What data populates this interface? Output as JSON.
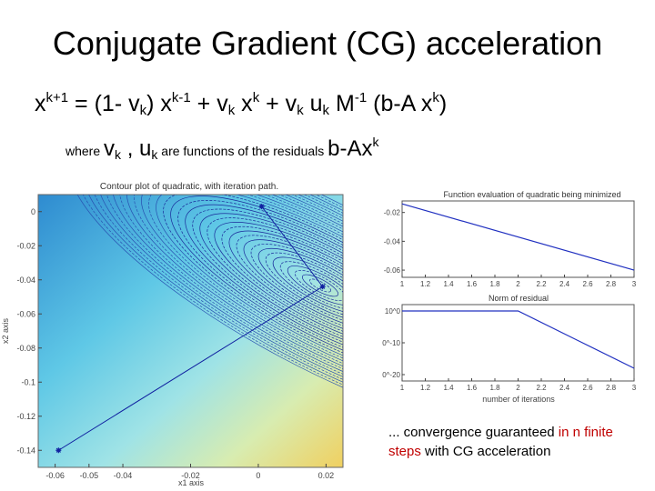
{
  "slide": {
    "title": "Conjugate Gradient (CG) acceleration",
    "equation": {
      "x1": "x",
      "k1": "k+1",
      "eq_open": " = (1- v",
      "k2": "k",
      "close_x": ") x",
      "km1": "k-1",
      "plus_v": " + v",
      "k3": "k",
      "x2": " x",
      "k4": "k",
      "plus_v2": "  + v",
      "k5": "k",
      "u": " u",
      "k6": "k",
      "M": " M",
      "m1": "-1",
      "bAx": " (b-A x",
      "k7": "k",
      "end": ")"
    },
    "where": {
      "word": "where ",
      "v": "v",
      "k_v": "k",
      "comma_u": " , u",
      "k_u": "k",
      "middle": " are functions of the residuals ",
      "bAx": "b-Ax",
      "k_sup": "k"
    },
    "note": {
      "part1": "... convergence guaranteed ",
      "part2_red": "in n finite steps",
      "part3": " with CG  acceleration"
    }
  },
  "chart_data": [
    {
      "type": "line",
      "title": "Contour plot of quadratic, with iteration path.",
      "xlabel": "x1 axis",
      "ylabel": "x2 axis",
      "xticks": [
        "-0.06",
        "-0.05",
        "-0.04",
        "-0.02",
        "0",
        "0.02"
      ],
      "yticks": [
        "0",
        "-0.02",
        "-0.04",
        "-0.06",
        "-0.08",
        "-0.1",
        "-0.12",
        "-0.14"
      ],
      "xlim": [
        -0.065,
        0.025
      ],
      "ylim": [
        -0.15,
        0.01
      ],
      "series": [
        {
          "x": [
            -0.059,
            0.019,
            0.001
          ],
          "y": [
            -0.14,
            -0.044,
            0.003
          ]
        }
      ]
    },
    {
      "type": "line",
      "title": "Function evaluation of quadratic being minimized",
      "xticks": [
        "1",
        "1.2",
        "1.4",
        "1.6",
        "1.8",
        "2",
        "2.2",
        "2.4",
        "2.6",
        "2.8",
        "3"
      ],
      "yticks": [
        "-0.02",
        "-0.04",
        "-0.06"
      ],
      "xlim": [
        1,
        3
      ],
      "ylim": [
        -0.065,
        -0.012
      ],
      "series": [
        {
          "x": [
            1,
            3
          ],
          "y": [
            -0.014,
            -0.06
          ]
        }
      ]
    },
    {
      "type": "line",
      "title": "Norm of residual",
      "xlabel": "number of iterations",
      "xticks": [
        "1",
        "1.2",
        "1.4",
        "1.6",
        "1.8",
        "2",
        "2.2",
        "2.4",
        "2.6",
        "2.8",
        "3"
      ],
      "yticks": [
        "10^0",
        "10^-10",
        "10^-20"
      ],
      "xlim": [
        1,
        3
      ],
      "ylim": [
        -22,
        2
      ],
      "series": [
        {
          "x": [
            1,
            2,
            3
          ],
          "y": [
            0,
            0,
            -18
          ]
        }
      ]
    }
  ]
}
